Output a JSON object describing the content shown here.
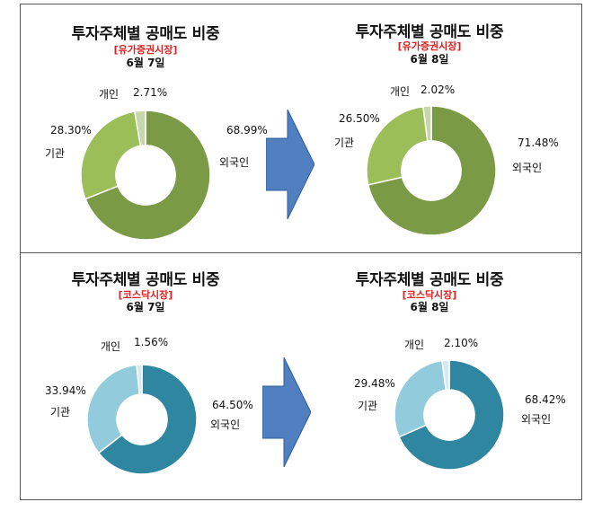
{
  "chart_data": [
    {
      "type": "pie",
      "title": "투자주체별 공매도 비중",
      "subtitle": "[유가증권시장]",
      "date": "6월 7일",
      "categories": [
        "외국인",
        "기관",
        "개인"
      ],
      "values": [
        68.99,
        28.3,
        2.71
      ],
      "value_labels": [
        "68.99%",
        "28.30%",
        "2.71%"
      ],
      "colors": [
        "#7b9a45",
        "#9bbe58",
        "#c6d7ad"
      ]
    },
    {
      "type": "pie",
      "title": "투자주체별 공매도 비중",
      "subtitle": "[유가증권시장]",
      "date": "6월 8일",
      "categories": [
        "외국인",
        "기관",
        "개인"
      ],
      "values": [
        71.48,
        26.5,
        2.02
      ],
      "value_labels": [
        "71.48%",
        "26.50%",
        "2.02%"
      ],
      "colors": [
        "#7b9a45",
        "#9bbe58",
        "#c6d7ad"
      ]
    },
    {
      "type": "pie",
      "title": "투자주체별 공매도 비중",
      "subtitle": "[코스닥시장]",
      "date": "6월 7일",
      "categories": [
        "외국인",
        "기관",
        "개인"
      ],
      "values": [
        64.5,
        33.94,
        1.56
      ],
      "value_labels": [
        "64.50%",
        "33.94%",
        "1.56%"
      ],
      "colors": [
        "#2f86a0",
        "#92cbdc",
        "#d4e9f1"
      ]
    },
    {
      "type": "pie",
      "title": "투자주체별 공매도 비중",
      "subtitle": "[코스닥시장]",
      "date": "6월 8일",
      "categories": [
        "외국인",
        "기관",
        "개인"
      ],
      "values": [
        68.42,
        29.48,
        2.1
      ],
      "value_labels": [
        "68.42%",
        "29.48%",
        "2.10%"
      ],
      "colors": [
        "#2f86a0",
        "#92cbdc",
        "#d4e9f1"
      ]
    }
  ],
  "arrow_color": "#4f7fbf"
}
